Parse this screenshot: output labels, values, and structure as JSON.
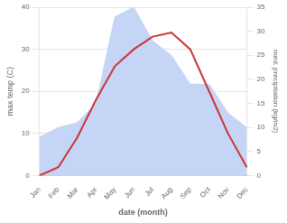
{
  "chart_data": {
    "type": "line",
    "categories": [
      "Jan",
      "Feb",
      "Mar",
      "Apr",
      "May",
      "Jun",
      "Jul",
      "Aug",
      "Sep",
      "Oct",
      "Nov",
      "Dec"
    ],
    "series": [
      {
        "type": "area",
        "color": "#c5d5f5",
        "axis": "y2",
        "values": [
          8,
          10,
          11,
          15,
          33,
          35,
          28,
          25,
          19,
          19,
          13,
          10
        ]
      },
      {
        "type": "line",
        "color": "#cc3333",
        "values": [
          0,
          2,
          9,
          18,
          26,
          30,
          33,
          34,
          30,
          20,
          10,
          2
        ]
      }
    ],
    "xlabel": "date (month)",
    "ylabel": "max temp (C)",
    "y2label": "med. precipitation (kg/m2)",
    "ylim": [
      0,
      40
    ],
    "yticks": [
      0,
      10,
      20,
      30,
      40
    ],
    "y2lim": [
      0,
      35
    ],
    "y2ticks": [
      0,
      5,
      10,
      15,
      20,
      25,
      30,
      35
    ],
    "grid": true
  }
}
